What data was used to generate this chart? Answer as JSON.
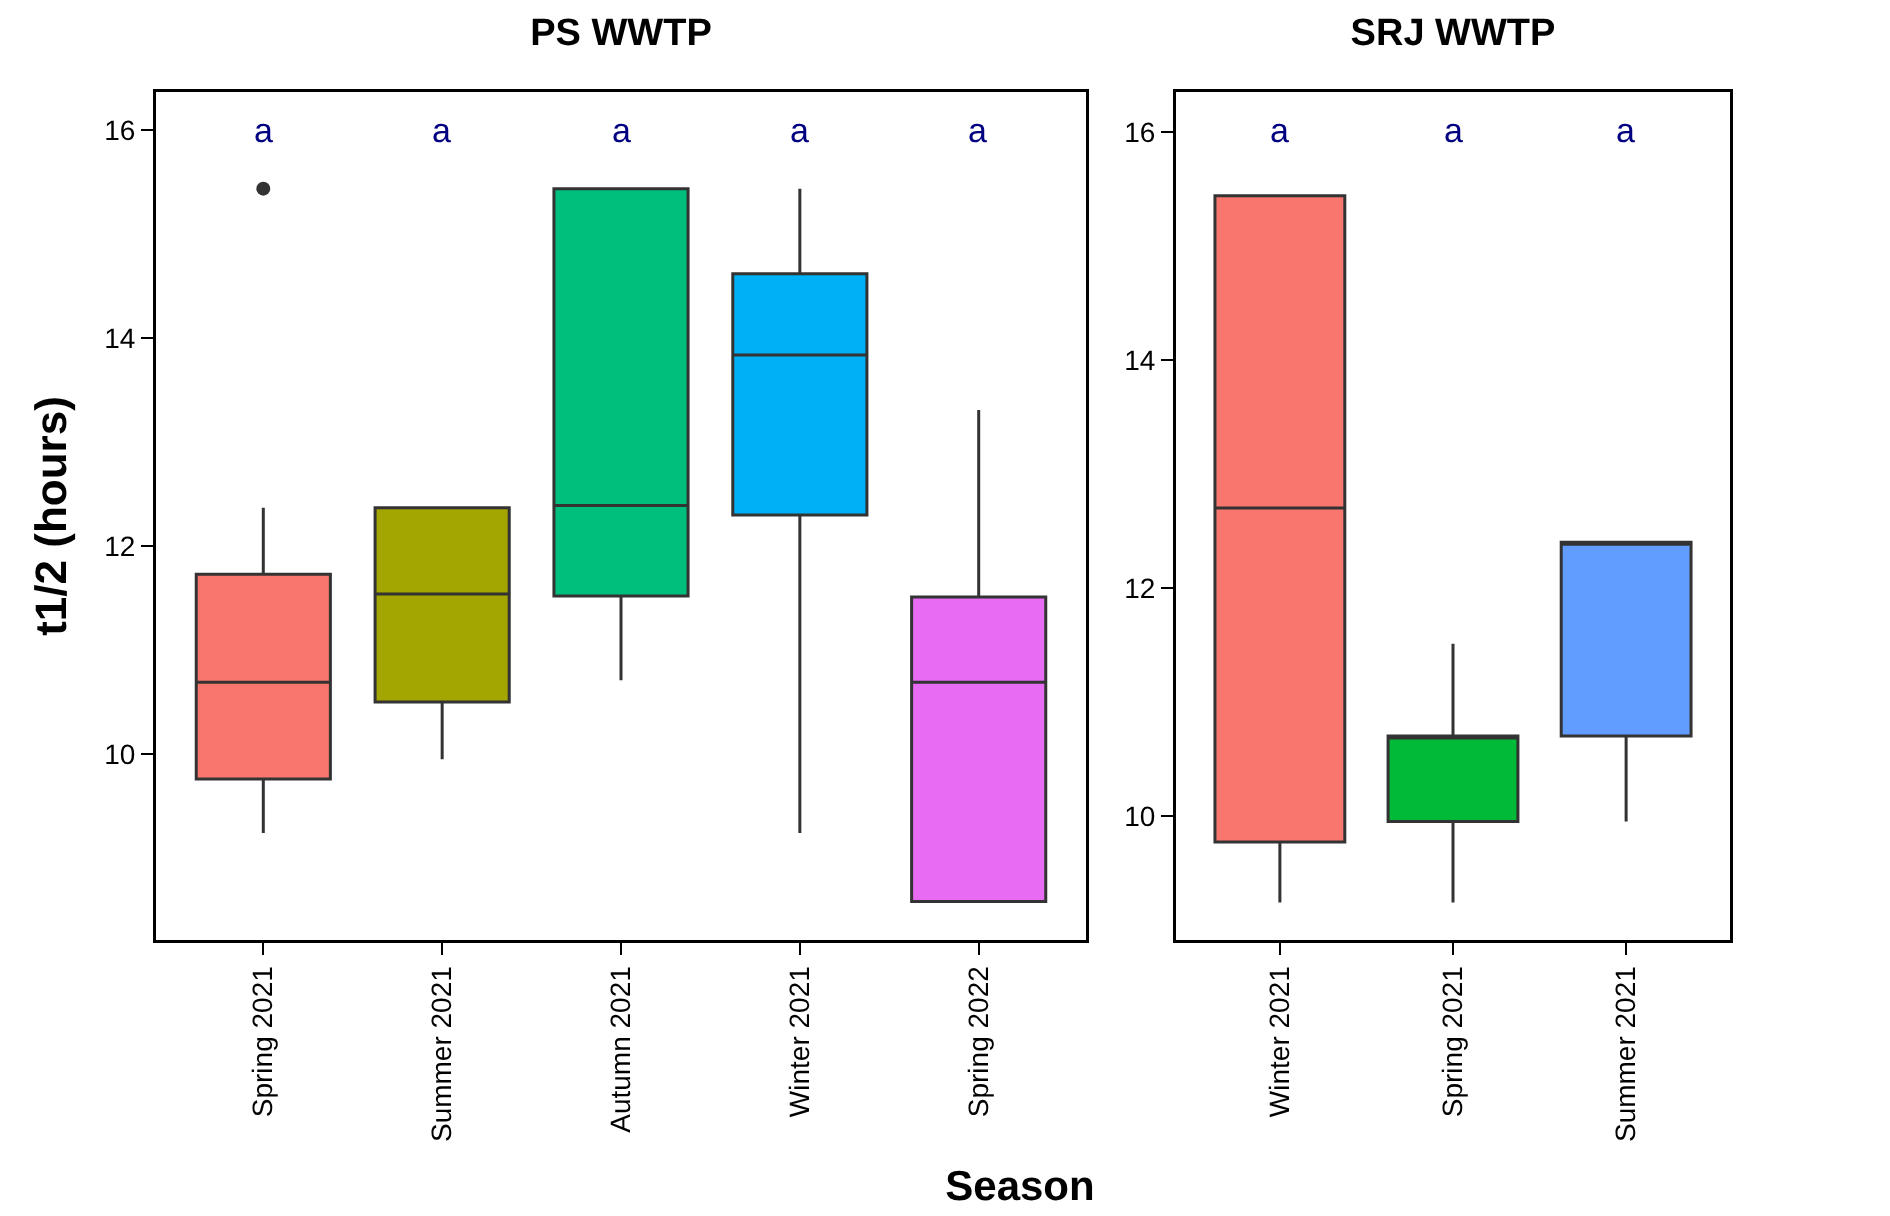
{
  "chart_data": [
    {
      "type": "box",
      "title": "PS WWTP",
      "xlabel": "Season",
      "ylabel": "t1/2 (hours)",
      "categories": [
        "Spring 2021",
        "Summer 2021",
        "Autumn 2021",
        "Winter 2021",
        "Spring 2022"
      ],
      "colors": [
        "#f8766d",
        "#a3a500",
        "#00bf7d",
        "#00b0f6",
        "#e76bf3"
      ],
      "boxes": [
        {
          "low": 9.24,
          "q1": 9.76,
          "median": 10.69,
          "q3": 11.73,
          "high": 12.37,
          "outliers": [
            15.44
          ]
        },
        {
          "low": 9.95,
          "q1": 10.5,
          "median": 11.54,
          "q3": 12.37,
          "high": 12.37
        },
        {
          "low": 10.71,
          "q1": 11.52,
          "median": 12.39,
          "q3": 15.44,
          "high": 15.44
        },
        {
          "low": 9.24,
          "q1": 12.3,
          "median": 13.84,
          "q3": 14.62,
          "high": 15.44
        },
        {
          "low": 8.58,
          "q1": 8.58,
          "median": 10.69,
          "q3": 11.51,
          "high": 13.31
        }
      ],
      "ylim": [
        8.21,
        16.37
      ],
      "yticks": [
        10,
        12,
        14,
        16
      ],
      "annotations": [
        "a",
        "a",
        "a",
        "a",
        "a"
      ]
    },
    {
      "type": "box",
      "title": "SRJ WWTP",
      "categories": [
        "Winter 2021",
        "Spring 2021",
        "Summer 2021"
      ],
      "colors": [
        "#f8766d",
        "#00ba38",
        "#619cff"
      ],
      "boxes": [
        {
          "low": 9.24,
          "q1": 9.77,
          "median": 12.7,
          "q3": 15.44,
          "high": 15.44
        },
        {
          "low": 9.24,
          "q1": 9.95,
          "median": 10.7,
          "q3": 10.7,
          "high": 11.51
        },
        {
          "low": 9.95,
          "q1": 10.7,
          "median": 12.4,
          "q3": 12.4,
          "high": 12.4
        }
      ],
      "ylim": [
        8.91,
        16.35
      ],
      "yticks": [
        10,
        12,
        14,
        16
      ],
      "annotations": [
        "a",
        "a",
        "a"
      ]
    }
  ]
}
